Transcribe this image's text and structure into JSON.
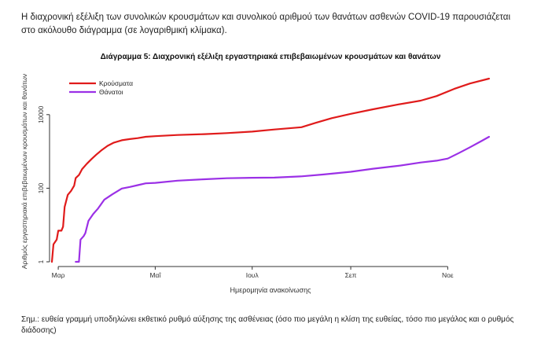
{
  "intro_text": "Η διαχρονική εξέλιξη των συνολικών κρουσμάτων και συνολικού αριθμού των θανάτων ασθενών COVID-19 παρουσιάζεται στο ακόλουθο διάγραμμα (σε λογαριθμική κλίμακα).",
  "chart_data": {
    "type": "line",
    "title": "Διάγραμμα 5: Διαχρονική εξέλιξη εργαστηριακά επιβεβαιωμένων κρουσμάτων και θανάτων",
    "xlabel": "Ημερομηνία ανακοίνωσης",
    "ylabel": "Αριθμός εργαστηριακά επιβεβαιωμένων κρουσμάτων και θανάτων",
    "y_scale": "log",
    "ylim": [
      1,
      100000
    ],
    "y_ticks": [
      {
        "value": 1,
        "label": "1"
      },
      {
        "value": 100,
        "label": "100"
      },
      {
        "value": 10000,
        "label": "10000"
      }
    ],
    "xlim": [
      "2020-02-26",
      "2020-11-30"
    ],
    "x_ticks": [
      {
        "value": "2020-03-01",
        "label": "Μαρ"
      },
      {
        "value": "2020-05-01",
        "label": "Μαΐ"
      },
      {
        "value": "2020-07-01",
        "label": "Ιουλ"
      },
      {
        "value": "2020-09-01",
        "label": "Σεπ"
      },
      {
        "value": "2020-11-01",
        "label": "Νοε"
      }
    ],
    "grid": false,
    "legend_position": "top-left",
    "series": [
      {
        "name": "Κρούσματα",
        "color": "#e01b1b",
        "points": [
          [
            "2020-02-26",
            1
          ],
          [
            "2020-02-27",
            3
          ],
          [
            "2020-02-29",
            4
          ],
          [
            "2020-03-01",
            7
          ],
          [
            "2020-03-03",
            7
          ],
          [
            "2020-03-04",
            9
          ],
          [
            "2020-03-05",
            31
          ],
          [
            "2020-03-07",
            66
          ],
          [
            "2020-03-09",
            84
          ],
          [
            "2020-03-11",
            117
          ],
          [
            "2020-03-12",
            190
          ],
          [
            "2020-03-14",
            228
          ],
          [
            "2020-03-16",
            331
          ],
          [
            "2020-03-19",
            464
          ],
          [
            "2020-03-22",
            624
          ],
          [
            "2020-03-25",
            821
          ],
          [
            "2020-03-28",
            1061
          ],
          [
            "2020-04-01",
            1415
          ],
          [
            "2020-04-05",
            1735
          ],
          [
            "2020-04-10",
            2011
          ],
          [
            "2020-04-15",
            2170
          ],
          [
            "2020-04-20",
            2300
          ],
          [
            "2020-04-25",
            2500
          ],
          [
            "2020-05-01",
            2600
          ],
          [
            "2020-05-15",
            2800
          ],
          [
            "2020-06-01",
            2950
          ],
          [
            "2020-06-15",
            3150
          ],
          [
            "2020-07-01",
            3450
          ],
          [
            "2020-07-15",
            3950
          ],
          [
            "2020-08-01",
            4550
          ],
          [
            "2020-08-10",
            6000
          ],
          [
            "2020-08-20",
            8000
          ],
          [
            "2020-09-01",
            10500
          ],
          [
            "2020-09-15",
            14000
          ],
          [
            "2020-10-01",
            19000
          ],
          [
            "2020-10-15",
            24000
          ],
          [
            "2020-10-25",
            32000
          ],
          [
            "2020-11-05",
            50000
          ],
          [
            "2020-11-15",
            70000
          ],
          [
            "2020-11-27",
            95000
          ]
        ]
      },
      {
        "name": "Θάνατοι",
        "color": "#9b30e6",
        "points": [
          [
            "2020-03-12",
            1
          ],
          [
            "2020-03-14",
            1
          ],
          [
            "2020-03-15",
            4
          ],
          [
            "2020-03-17",
            5
          ],
          [
            "2020-03-18",
            6
          ],
          [
            "2020-03-20",
            13
          ],
          [
            "2020-03-23",
            20
          ],
          [
            "2020-03-26",
            28
          ],
          [
            "2020-03-30",
            49
          ],
          [
            "2020-04-04",
            68
          ],
          [
            "2020-04-10",
            98
          ],
          [
            "2020-04-15",
            108
          ],
          [
            "2020-04-20",
            121
          ],
          [
            "2020-04-25",
            136
          ],
          [
            "2020-05-01",
            140
          ],
          [
            "2020-05-15",
            160
          ],
          [
            "2020-06-01",
            175
          ],
          [
            "2020-06-15",
            187
          ],
          [
            "2020-07-01",
            192
          ],
          [
            "2020-07-15",
            194
          ],
          [
            "2020-08-01",
            210
          ],
          [
            "2020-08-15",
            236
          ],
          [
            "2020-09-01",
            279
          ],
          [
            "2020-09-15",
            338
          ],
          [
            "2020-10-01",
            406
          ],
          [
            "2020-10-15",
            500
          ],
          [
            "2020-10-25",
            560
          ],
          [
            "2020-11-01",
            640
          ],
          [
            "2020-11-08",
            900
          ],
          [
            "2020-11-15",
            1300
          ],
          [
            "2020-11-22",
            1900
          ],
          [
            "2020-11-27",
            2500
          ]
        ]
      }
    ]
  },
  "note_text": "Σημ.: ευθεία γραμμή υποδηλώνει εκθετικό ρυθμό αύξησης της ασθένειας (όσο πιο μεγάλη η κλίση της ευθείας, τόσο πιο μεγάλος και ο ρυθμός διάδοσης)"
}
